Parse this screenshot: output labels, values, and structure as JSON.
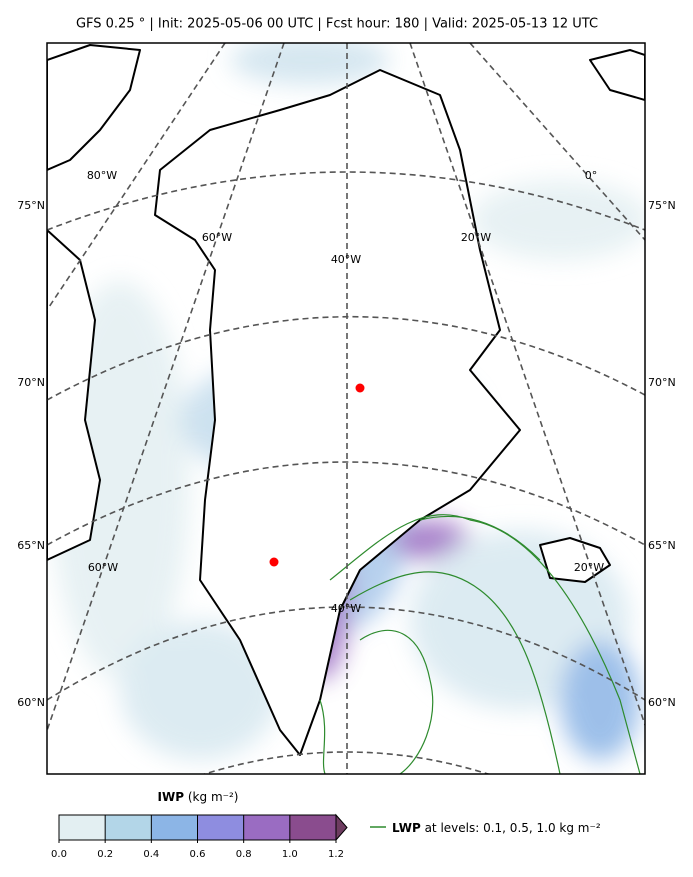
{
  "header": {
    "title": "GFS 0.25 ° | Init: 2025-05-06 00 UTC | Fcst hour: 180 | Valid: 2025-05-13 12 UTC"
  },
  "map": {
    "lat_labels": [
      "75°N",
      "70°N",
      "65°N",
      "60°N"
    ],
    "lon_labels_top": [
      "80°W",
      "60°W",
      "40°W",
      "20°W",
      "0°"
    ],
    "lon_labels_bottom": [
      "60°W",
      "40°W",
      "20°W"
    ]
  },
  "colorbar": {
    "label_name": "IWP",
    "label_units": "(kg m⁻²)",
    "vlim": [
      0,
      1.2
    ],
    "ticks": [
      {
        "value": 0,
        "label": "0.0"
      },
      {
        "value": 0.2,
        "label": "0.2"
      },
      {
        "value": 0.4,
        "label": "0.4"
      },
      {
        "value": 0.6,
        "label": "0.6"
      },
      {
        "value": 0.8,
        "label": "0.8"
      },
      {
        "value": 1.0,
        "label": "1.0"
      },
      {
        "value": 1.2,
        "label": "1.2"
      }
    ],
    "colors": [
      "#e3eff2",
      "#b3d6e8",
      "#8cb5e6",
      "#8e8de0",
      "#9a6cc2",
      "#8a4c8e"
    ],
    "extend_color": "#6e3c60"
  },
  "legend": {
    "name": "LWP",
    "text": "at levels: 0.1, 0.5, 1.0  kg m⁻²",
    "color": "#2e8b2e"
  }
}
